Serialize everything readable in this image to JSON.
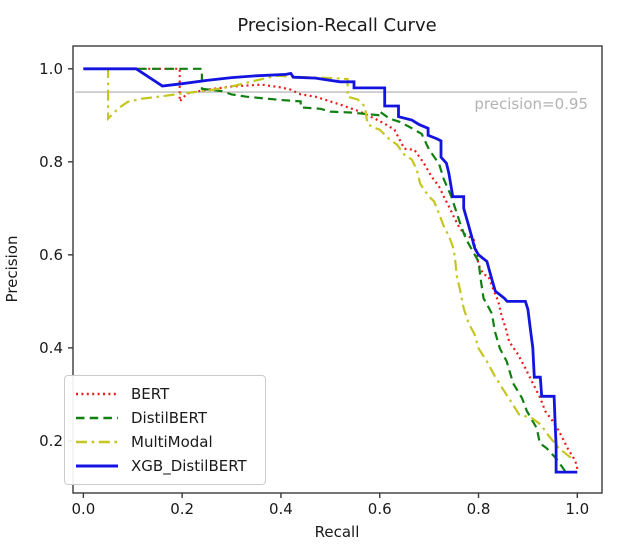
{
  "chart_data": {
    "type": "line",
    "title": "Precision-Recall Curve",
    "xlabel": "Recall",
    "ylabel": "Precision",
    "x_ticks": [
      0.0,
      0.2,
      0.4,
      0.6,
      0.8,
      1.0
    ],
    "x_tick_labels": [
      "0.0",
      "0.2",
      "0.4",
      "0.6",
      "0.8",
      "1.0"
    ],
    "y_ticks": [
      0.2,
      0.4,
      0.6,
      0.8,
      1.0
    ],
    "y_tick_labels": [
      "0.2",
      "0.4",
      "0.6",
      "0.8",
      "1.0"
    ],
    "xlim": [
      -0.021,
      1.05
    ],
    "ylim": [
      0.088,
      1.049
    ],
    "grid": false,
    "legend_position": "lower-left",
    "annotation": {
      "text": "precision=0.95",
      "y": 0.95,
      "color": "#b3b3b3",
      "line_color": "#bbbbbb"
    },
    "axis_color": "#3a3a3a",
    "series": [
      {
        "name": "BERT",
        "color": "#ee1b1b",
        "style": "dotted",
        "width": 2.2,
        "points": [
          [
            0,
            1
          ],
          [
            0.195,
            1
          ],
          [
            0.195,
            0.93
          ],
          [
            0.21,
            0.947
          ],
          [
            0.25,
            0.955
          ],
          [
            0.3,
            0.962
          ],
          [
            0.36,
            0.966
          ],
          [
            0.4,
            0.96
          ],
          [
            0.42,
            0.955
          ],
          [
            0.44,
            0.945
          ],
          [
            0.47,
            0.94
          ],
          [
            0.5,
            0.93
          ],
          [
            0.52,
            0.923
          ],
          [
            0.56,
            0.908
          ],
          [
            0.59,
            0.893
          ],
          [
            0.61,
            0.882
          ],
          [
            0.63,
            0.869
          ],
          [
            0.65,
            0.828
          ],
          [
            0.67,
            0.826
          ],
          [
            0.69,
            0.796
          ],
          [
            0.705,
            0.768
          ],
          [
            0.72,
            0.747
          ],
          [
            0.73,
            0.725
          ],
          [
            0.74,
            0.704
          ],
          [
            0.75,
            0.682
          ],
          [
            0.76,
            0.661
          ],
          [
            0.77,
            0.646
          ],
          [
            0.79,
            0.633
          ],
          [
            0.8,
            0.579
          ],
          [
            0.81,
            0.558
          ],
          [
            0.82,
            0.554
          ],
          [
            0.83,
            0.526
          ],
          [
            0.84,
            0.5
          ],
          [
            0.847,
            0.468
          ],
          [
            0.855,
            0.442
          ],
          [
            0.862,
            0.414
          ],
          [
            0.88,
            0.386
          ],
          [
            0.895,
            0.356
          ],
          [
            0.91,
            0.324
          ],
          [
            0.925,
            0.292
          ],
          [
            0.935,
            0.264
          ],
          [
            0.95,
            0.243
          ],
          [
            0.963,
            0.221
          ],
          [
            0.98,
            0.185
          ],
          [
            0.996,
            0.157
          ],
          [
            1,
            0.14
          ]
        ]
      },
      {
        "name": "DistilBERT",
        "color": "#118011",
        "style": "dashed",
        "width": 2.2,
        "points": [
          [
            0,
            1
          ],
          [
            0.24,
            1
          ],
          [
            0.24,
            0.957
          ],
          [
            0.28,
            0.952
          ],
          [
            0.3,
            0.945
          ],
          [
            0.33,
            0.94
          ],
          [
            0.36,
            0.937
          ],
          [
            0.4,
            0.933
          ],
          [
            0.44,
            0.93
          ],
          [
            0.44,
            0.917
          ],
          [
            0.48,
            0.914
          ],
          [
            0.5,
            0.908
          ],
          [
            0.54,
            0.906
          ],
          [
            0.57,
            0.903
          ],
          [
            0.6,
            0.9
          ],
          [
            0.6,
            0.908
          ],
          [
            0.62,
            0.893
          ],
          [
            0.64,
            0.886
          ],
          [
            0.66,
            0.875
          ],
          [
            0.685,
            0.86
          ],
          [
            0.7,
            0.826
          ],
          [
            0.72,
            0.796
          ],
          [
            0.73,
            0.762
          ],
          [
            0.745,
            0.725
          ],
          [
            0.755,
            0.693
          ],
          [
            0.765,
            0.661
          ],
          [
            0.775,
            0.633
          ],
          [
            0.8,
            0.586
          ],
          [
            0.805,
            0.543
          ],
          [
            0.81,
            0.507
          ],
          [
            0.827,
            0.474
          ],
          [
            0.833,
            0.436
          ],
          [
            0.843,
            0.399
          ],
          [
            0.857,
            0.371
          ],
          [
            0.87,
            0.324
          ],
          [
            0.888,
            0.292
          ],
          [
            0.898,
            0.264
          ],
          [
            0.918,
            0.227
          ],
          [
            0.924,
            0.195
          ],
          [
            0.938,
            0.184
          ],
          [
            0.958,
            0.161
          ],
          [
            0.975,
            0.135
          ],
          [
            0.983,
            0.129
          ]
        ]
      },
      {
        "name": "MultiModal",
        "color": "#c6c620",
        "style": "dashdot",
        "width": 2.2,
        "points": [
          [
            0,
            1
          ],
          [
            0.05,
            1
          ],
          [
            0.05,
            0.893
          ],
          [
            0.07,
            0.914
          ],
          [
            0.09,
            0.929
          ],
          [
            0.12,
            0.936
          ],
          [
            0.16,
            0.941
          ],
          [
            0.2,
            0.947
          ],
          [
            0.25,
            0.953
          ],
          [
            0.3,
            0.962
          ],
          [
            0.35,
            0.975
          ],
          [
            0.39,
            0.985
          ],
          [
            0.45,
            0.982
          ],
          [
            0.5,
            0.98
          ],
          [
            0.535,
            0.978
          ],
          [
            0.535,
            0.94
          ],
          [
            0.555,
            0.934
          ],
          [
            0.565,
            0.925
          ],
          [
            0.57,
            0.918
          ],
          [
            0.575,
            0.882
          ],
          [
            0.585,
            0.875
          ],
          [
            0.6,
            0.869
          ],
          [
            0.62,
            0.848
          ],
          [
            0.635,
            0.837
          ],
          [
            0.65,
            0.815
          ],
          [
            0.665,
            0.805
          ],
          [
            0.675,
            0.783
          ],
          [
            0.682,
            0.753
          ],
          [
            0.69,
            0.74
          ],
          [
            0.7,
            0.725
          ],
          [
            0.71,
            0.715
          ],
          [
            0.72,
            0.689
          ],
          [
            0.73,
            0.661
          ],
          [
            0.74,
            0.64
          ],
          [
            0.748,
            0.618
          ],
          [
            0.752,
            0.597
          ],
          [
            0.756,
            0.554
          ],
          [
            0.762,
            0.528
          ],
          [
            0.77,
            0.485
          ],
          [
            0.78,
            0.453
          ],
          [
            0.792,
            0.429
          ],
          [
            0.8,
            0.399
          ],
          [
            0.817,
            0.371
          ],
          [
            0.833,
            0.339
          ],
          [
            0.852,
            0.307
          ],
          [
            0.868,
            0.281
          ],
          [
            0.882,
            0.257
          ],
          [
            0.908,
            0.249
          ],
          [
            0.925,
            0.236
          ],
          [
            0.943,
            0.21
          ],
          [
            0.963,
            0.184
          ],
          [
            0.99,
            0.161
          ]
        ]
      },
      {
        "name": "XGB_DistilBERT",
        "color": "#1414e0",
        "style": "solid",
        "width": 2.8,
        "points": [
          [
            0,
            1
          ],
          [
            0.107,
            1
          ],
          [
            0.16,
            0.963
          ],
          [
            0.2,
            0.968
          ],
          [
            0.25,
            0.975
          ],
          [
            0.3,
            0.981
          ],
          [
            0.35,
            0.985
          ],
          [
            0.41,
            0.988
          ],
          [
            0.42,
            0.99
          ],
          [
            0.425,
            0.982
          ],
          [
            0.47,
            0.98
          ],
          [
            0.5,
            0.975
          ],
          [
            0.52,
            0.972
          ],
          [
            0.548,
            0.972
          ],
          [
            0.548,
            0.959
          ],
          [
            0.61,
            0.959
          ],
          [
            0.61,
            0.92
          ],
          [
            0.638,
            0.92
          ],
          [
            0.638,
            0.897
          ],
          [
            0.665,
            0.89
          ],
          [
            0.68,
            0.88
          ],
          [
            0.698,
            0.872
          ],
          [
            0.698,
            0.857
          ],
          [
            0.715,
            0.85
          ],
          [
            0.724,
            0.845
          ],
          [
            0.724,
            0.81
          ],
          [
            0.735,
            0.797
          ],
          [
            0.74,
            0.775
          ],
          [
            0.748,
            0.725
          ],
          [
            0.77,
            0.725
          ],
          [
            0.77,
            0.7
          ],
          [
            0.778,
            0.67
          ],
          [
            0.786,
            0.64
          ],
          [
            0.792,
            0.615
          ],
          [
            0.8,
            0.6
          ],
          [
            0.817,
            0.586
          ],
          [
            0.827,
            0.547
          ],
          [
            0.834,
            0.522
          ],
          [
            0.852,
            0.507
          ],
          [
            0.858,
            0.5
          ],
          [
            0.895,
            0.5
          ],
          [
            0.9,
            0.483
          ],
          [
            0.905,
            0.44
          ],
          [
            0.91,
            0.4
          ],
          [
            0.913,
            0.337
          ],
          [
            0.925,
            0.337
          ],
          [
            0.928,
            0.296
          ],
          [
            0.953,
            0.296
          ],
          [
            0.955,
            0.24
          ],
          [
            0.957,
            0.19
          ],
          [
            0.957,
            0.133
          ],
          [
            1,
            0.133
          ]
        ]
      }
    ]
  }
}
